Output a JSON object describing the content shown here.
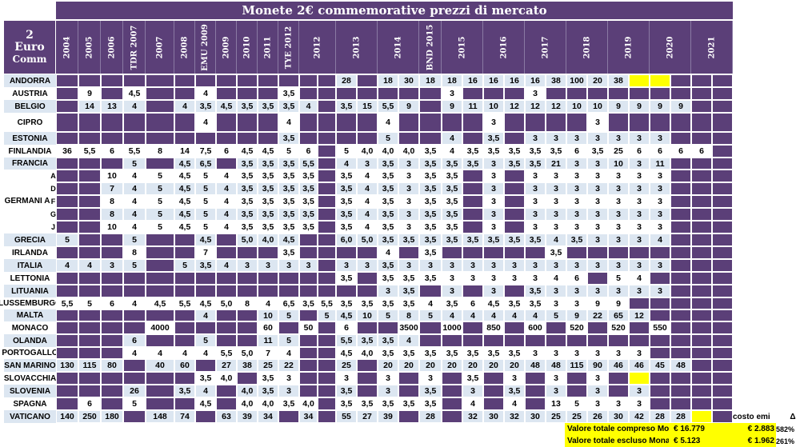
{
  "sheet": {
    "title": "Monete 2€ commemorative prezzi di mercato",
    "corner": [
      "2",
      "Euro",
      "Comm"
    ],
    "years": [
      "2004",
      "2005",
      "2006",
      "TDR 2007",
      "2007",
      "2008",
      "EMU 2009",
      "2009",
      "2010",
      "2011",
      "TYE 2012",
      "2012",
      "2013",
      "2014",
      "BND 2015",
      "2015",
      "2016",
      "2017",
      "2018",
      "2019",
      "2020",
      "2021"
    ],
    "germany_label": "GERMANI A",
    "germany_mints": [
      "A",
      "D",
      "F",
      "G",
      "J"
    ],
    "rows": [
      {
        "country": "ANDORRA",
        "cells": [
          null,
          null,
          null,
          null,
          null,
          null,
          null,
          null,
          null,
          null,
          null,
          null,
          null,
          "28",
          null,
          "18",
          "30",
          "18",
          "18",
          "16",
          "16",
          "16",
          "16",
          "38",
          "100",
          "20",
          "38",
          "",
          ""
        ]
      },
      {
        "country": "AUSTRIA",
        "cells": [
          null,
          "9",
          null,
          "4,5",
          null,
          null,
          "4",
          null,
          null,
          null,
          "3,5",
          null,
          null,
          null,
          null,
          null,
          null,
          null,
          "3",
          null,
          null,
          null,
          "3",
          null,
          null,
          null,
          null,
          null,
          null
        ]
      },
      {
        "country": "BELGIO",
        "cells": [
          null,
          "14",
          "13",
          "4",
          null,
          "4",
          "3,5",
          "4,5",
          "3,5",
          "3,5",
          "3,5",
          "4",
          null,
          "3,5",
          "15",
          "5,5",
          "9",
          null,
          "9",
          "11",
          "10",
          "12",
          "12",
          "12",
          "10",
          "10",
          "9",
          "9",
          "9",
          "9"
        ]
      },
      {
        "country": "CIPRO",
        "cells": [
          null,
          null,
          null,
          null,
          null,
          null,
          "4",
          null,
          null,
          null,
          "4",
          null,
          null,
          null,
          null,
          "4",
          null,
          null,
          null,
          null,
          "3",
          null,
          null,
          null,
          null,
          "3",
          null,
          null
        ]
      },
      {
        "country": "ESTONIA",
        "cells": [
          null,
          null,
          null,
          null,
          null,
          null,
          null,
          null,
          null,
          null,
          "3,5",
          null,
          null,
          null,
          null,
          "5",
          null,
          null,
          "4",
          null,
          "3,5",
          null,
          "3",
          "3",
          "3",
          "3",
          "3",
          "3",
          "3"
        ]
      },
      {
        "country": "FINLANDIA",
        "cells": [
          "36",
          "5,5",
          "6",
          "5,5",
          "8",
          "14",
          "7,5",
          "6",
          "4,5",
          "4,5",
          "5",
          "6",
          null,
          "5",
          "4,0",
          "4,0",
          "4,0",
          "3,5",
          "4",
          "3,5",
          "3,5",
          "3,5",
          "3,5",
          "3,5",
          "6",
          "3,5",
          "25",
          "6",
          "6",
          "6",
          "6"
        ]
      },
      {
        "country": "FRANCIA",
        "cells": [
          null,
          null,
          null,
          "5",
          null,
          "4,5",
          "6,5",
          null,
          "3,5",
          "3,5",
          "3,5",
          "5,5",
          null,
          "4",
          "3",
          "3,5",
          "3",
          "3,5",
          "3,5",
          "3,5",
          "3",
          "3,5",
          "3,5",
          "21",
          "3",
          "3",
          "10",
          "3",
          "11"
        ]
      },
      {
        "country": "GERMANIA-A",
        "cells": [
          null,
          null,
          "10",
          "4",
          "5",
          "4,5",
          "5",
          "4",
          "3,5",
          "3,5",
          "3,5",
          "3,5",
          null,
          "3,5",
          "4",
          "3,5",
          "3",
          "3,5",
          "3,5",
          null,
          "3",
          null,
          "3",
          "3",
          "3",
          "3",
          "3",
          "3",
          "3"
        ]
      },
      {
        "country": "GERMANIA-D",
        "cells": [
          null,
          null,
          "7",
          "4",
          "5",
          "4,5",
          "5",
          "4",
          "3,5",
          "3,5",
          "3,5",
          "3,5",
          null,
          "3,5",
          "4",
          "3,5",
          "3",
          "3,5",
          "3,5",
          null,
          "3",
          null,
          "3",
          "3",
          "3",
          "3",
          "3",
          "3",
          "3"
        ]
      },
      {
        "country": "GERMANIA-F",
        "cells": [
          null,
          null,
          "8",
          "4",
          "5",
          "4,5",
          "5",
          "4",
          "3,5",
          "3,5",
          "3,5",
          "3,5",
          null,
          "3,5",
          "4",
          "3,5",
          "3",
          "3,5",
          "3,5",
          null,
          "3",
          null,
          "3",
          "3",
          "3",
          "3",
          "3",
          "3",
          "3"
        ]
      },
      {
        "country": "GERMANIA-G",
        "cells": [
          null,
          null,
          "8",
          "4",
          "5",
          "4,5",
          "5",
          "4",
          "3,5",
          "3,5",
          "3,5",
          "3,5",
          null,
          "3,5",
          "4",
          "3,5",
          "3",
          "3,5",
          "3,5",
          null,
          "3",
          null,
          "3",
          "3",
          "3",
          "3",
          "3",
          "3",
          "3"
        ]
      },
      {
        "country": "GERMANIA-J",
        "cells": [
          null,
          null,
          "10",
          "4",
          "5",
          "4,5",
          "5",
          "4",
          "3,5",
          "3,5",
          "3,5",
          "3,5",
          null,
          "3,5",
          "4",
          "3,5",
          "3",
          "3,5",
          "3,5",
          null,
          "3",
          null,
          "3",
          "3",
          "3",
          "3",
          "3",
          "3",
          "3"
        ]
      },
      {
        "country": "GRECIA",
        "cells": [
          "5",
          null,
          null,
          "5",
          null,
          null,
          "4,5",
          null,
          "5,0",
          "4,0",
          "4,5",
          null,
          null,
          "6,0",
          "5,0",
          "3,5",
          "3,5",
          "3,5",
          "3,5",
          "3,5",
          "3,5",
          "3,5",
          "3,5",
          "4",
          "3,5",
          "3",
          "3",
          "3",
          "4"
        ]
      },
      {
        "country": "IRLANDA",
        "cells": [
          null,
          null,
          null,
          "8",
          null,
          null,
          "7",
          null,
          null,
          null,
          "3,5",
          null,
          null,
          null,
          null,
          "4",
          null,
          "3,5",
          null,
          null,
          null,
          null,
          null,
          "3,5",
          null,
          null,
          null,
          null
        ]
      },
      {
        "country": "ITALIA",
        "cells": [
          "4",
          "4",
          "3",
          "5",
          null,
          "5",
          "3,5",
          "4",
          "3",
          "3",
          "3",
          "3",
          null,
          "3",
          "3",
          "3,5",
          "3",
          "3",
          "3",
          "3",
          "3",
          "3",
          "3",
          "3",
          "3",
          "3",
          "3",
          "3",
          "3"
        ]
      },
      {
        "country": "LETTONIA",
        "cells": [
          null,
          null,
          null,
          null,
          null,
          null,
          null,
          null,
          null,
          null,
          null,
          null,
          null,
          "3,5",
          null,
          "3,5",
          "3,5",
          "3,5",
          "3",
          "3",
          "3",
          "3",
          "3",
          "4",
          "6",
          null,
          "5",
          "4"
        ]
      },
      {
        "country": "LITUANIA",
        "cells": [
          null,
          null,
          null,
          null,
          null,
          null,
          null,
          null,
          null,
          null,
          null,
          null,
          null,
          null,
          null,
          "3",
          "3,5",
          null,
          "3",
          null,
          "3",
          null,
          "3,5",
          "3",
          "3",
          "3",
          "3",
          "3",
          "3"
        ]
      },
      {
        "country": "LUSSEMBURGO",
        "cells": [
          "5,5",
          "5",
          "6",
          "4",
          "4,5",
          "5,5",
          "4,5",
          "5,0",
          "8",
          "4",
          "6,5",
          "3,5",
          "5,5",
          "3,5",
          "3,5",
          "3,5",
          "3,5",
          "4",
          "3,5",
          "6",
          "4,5",
          "3,5",
          "3,5",
          "3",
          "3",
          "9",
          "9"
        ]
      },
      {
        "country": "MALTA",
        "cells": [
          null,
          null,
          null,
          null,
          null,
          null,
          "4",
          null,
          null,
          "10",
          "5",
          null,
          "5",
          "4,5",
          "10",
          "5",
          "8",
          "5",
          "4",
          "4",
          "4",
          "4",
          "4",
          "5",
          "9",
          "22",
          "65",
          "12"
        ]
      },
      {
        "country": "MONACO",
        "cells": [
          null,
          null,
          null,
          null,
          "4000",
          null,
          null,
          null,
          null,
          "60",
          null,
          "50",
          null,
          "6",
          null,
          null,
          "3500",
          null,
          "1000",
          null,
          "850",
          null,
          "600",
          null,
          "520",
          null,
          "520",
          null,
          "550"
        ]
      },
      {
        "country": "OLANDA",
        "cells": [
          null,
          null,
          null,
          "6",
          null,
          null,
          "5",
          null,
          null,
          "11",
          "5",
          null,
          null,
          "5,5",
          "3,5",
          "3,5",
          "4",
          null,
          null,
          null,
          null,
          null,
          null,
          null,
          null,
          null,
          null,
          null
        ]
      },
      {
        "country": "PORTOGALLO",
        "cells": [
          null,
          null,
          null,
          "4",
          "4",
          "4",
          "4",
          "5,5",
          "5,0",
          "7",
          "4",
          null,
          null,
          "4,5",
          "4,0",
          "3,5",
          "3,5",
          "3,5",
          "3,5",
          "3,5",
          "3,5",
          "3,5",
          "3",
          "3",
          "3",
          "3",
          "3",
          "3"
        ]
      },
      {
        "country": "SAN MARINO",
        "cells": [
          "130",
          "115",
          "80",
          null,
          "40",
          "60",
          null,
          "27",
          "38",
          "25",
          "22",
          null,
          null,
          "25",
          null,
          "20",
          "20",
          "20",
          "20",
          "20",
          "20",
          "20",
          "48",
          "48",
          "115",
          "90",
          "46",
          "46",
          "45",
          "48"
        ]
      },
      {
        "country": "SLOVACCHIA",
        "cells": [
          null,
          null,
          null,
          null,
          null,
          null,
          "3,5",
          "4,0",
          null,
          "3,5",
          "3",
          null,
          null,
          "3",
          null,
          "3",
          null,
          "3",
          null,
          "3,5",
          null,
          "3",
          null,
          "3",
          null,
          "3",
          null,
          ""
        ]
      },
      {
        "country": "SLOVENIA",
        "cells": [
          null,
          null,
          null,
          "26",
          null,
          "3,5",
          "4",
          null,
          "4,0",
          "3,5",
          "3",
          null,
          null,
          "3,5",
          null,
          "3",
          null,
          "3,5",
          null,
          "3",
          null,
          "3,5",
          null,
          "3",
          null,
          "3",
          null,
          "3"
        ]
      },
      {
        "country": "SPAGNA",
        "cells": [
          null,
          "6",
          null,
          "5",
          null,
          null,
          "4,5",
          null,
          "4,0",
          "4,0",
          "3,5",
          "4,0",
          null,
          "3,5",
          "3,5",
          "3,5",
          "3,5",
          "3,5",
          null,
          "4",
          null,
          "4",
          null,
          "13",
          "5",
          "3",
          "3",
          "3"
        ]
      },
      {
        "country": "VATICANO",
        "cells": [
          "140",
          "250",
          "180",
          null,
          "148",
          "74",
          null,
          "63",
          "39",
          "34",
          null,
          "34",
          null,
          "55",
          "27",
          "39",
          null,
          "28",
          null,
          "32",
          "30",
          "32",
          "30",
          "25",
          "25",
          "26",
          "30",
          "42",
          "28",
          "28",
          ""
        ]
      }
    ]
  },
  "footer": {
    "costo_label": "costo emi",
    "delta_label": "Δ",
    "row1": {
      "label": "Valore totale compreso Mona",
      "value": "€ 16.779",
      "cost": "€ 2.883",
      "pct": "582%"
    },
    "row2": {
      "label": "Valore totale escluso Monaco",
      "value": "€ 5.123",
      "cost": "€ 1.962",
      "pct": "261%"
    }
  },
  "colors": {
    "purple": "#5b3f78",
    "light_blue": "#dce6f1",
    "yellow": "#ffff00",
    "white": "#ffffff"
  }
}
